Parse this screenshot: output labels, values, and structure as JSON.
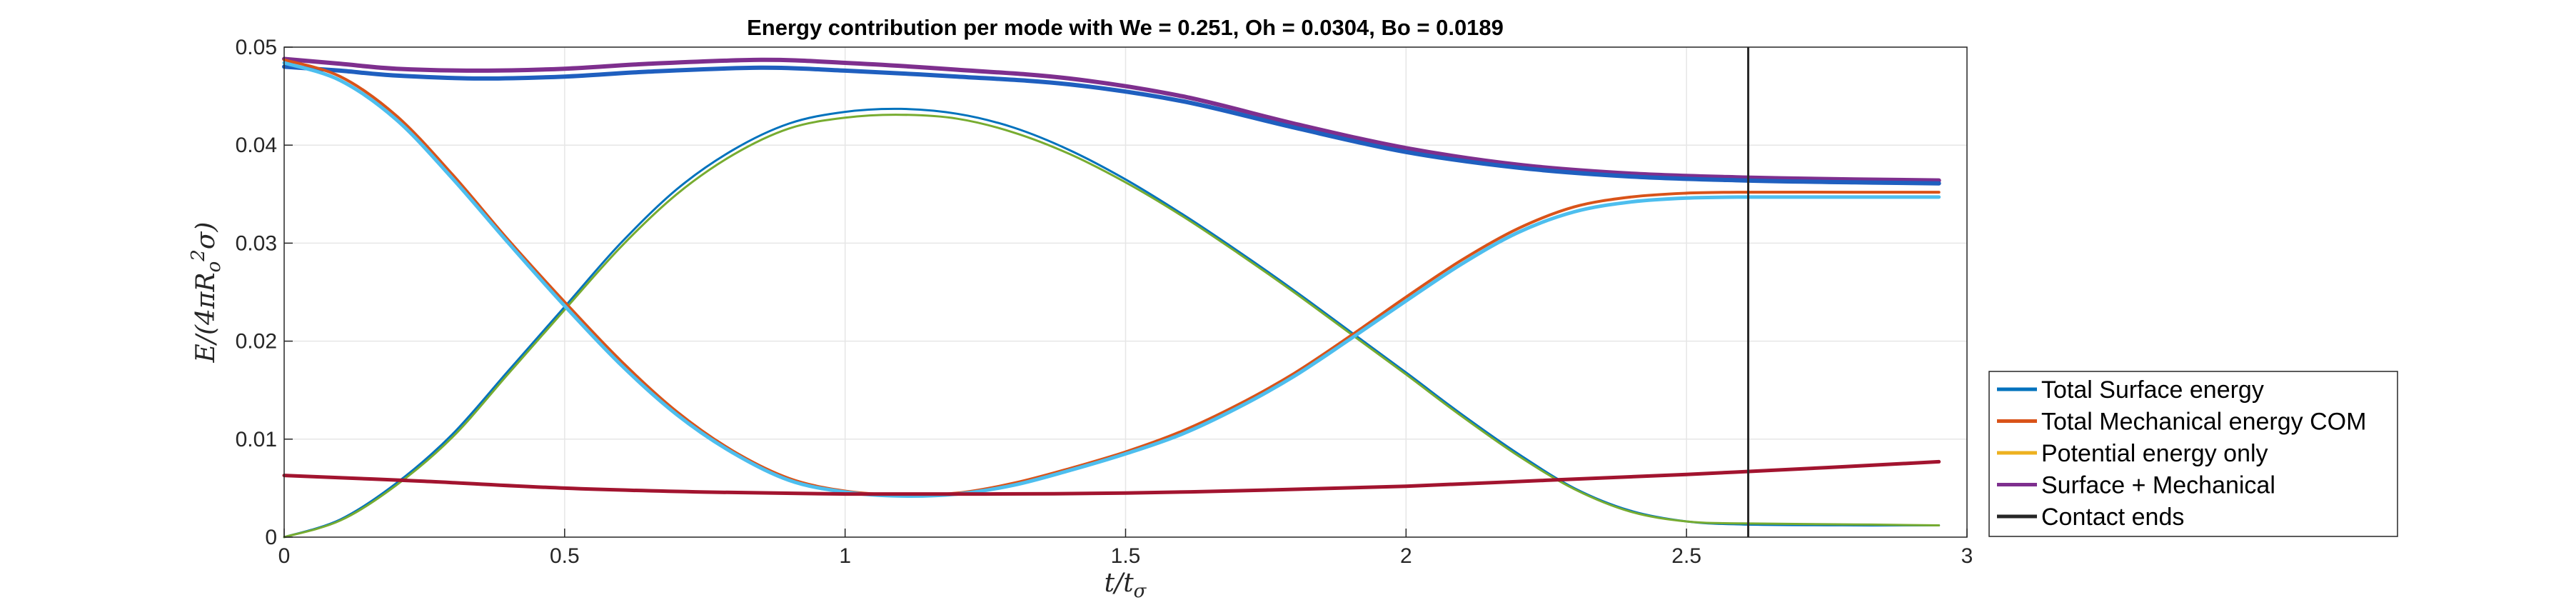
{
  "chart_data": {
    "type": "line",
    "title": "Energy contribution per mode with We = 0.251, Oh = 0.0304, Bo = 0.0189",
    "xlabel": "t/t_σ",
    "ylabel": "E/(4πR_o²σ)",
    "xlim": [
      0,
      3
    ],
    "ylim": [
      0,
      0.05
    ],
    "xticks": [
      "0",
      "0.5",
      "1",
      "1.5",
      "2",
      "2.5",
      "3"
    ],
    "yticks": [
      "0",
      "0.01",
      "0.02",
      "0.03",
      "0.04",
      "0.05"
    ],
    "grid": true,
    "legend_position": "lower-right outside",
    "legend": [
      {
        "label": "Total Surface energy",
        "color": "#0072BD"
      },
      {
        "label": "Total Mechanical energy COM",
        "color": "#D95319"
      },
      {
        "label": "Potential energy only",
        "color": "#EDB120"
      },
      {
        "label": "Surface + Mechanical",
        "color": "#7E2F8E"
      },
      {
        "label": "Contact ends",
        "color": "#262626"
      }
    ],
    "contact_end_x": 2.61,
    "series": [
      {
        "name": "Surface + Mechanical",
        "color": "#7E2F8E",
        "width": 6,
        "points": [
          [
            0,
            0.0488
          ],
          [
            0.1,
            0.0483
          ],
          [
            0.2,
            0.0478
          ],
          [
            0.35,
            0.0476
          ],
          [
            0.5,
            0.0478
          ],
          [
            0.65,
            0.0483
          ],
          [
            0.85,
            0.0487
          ],
          [
            1.0,
            0.0484
          ],
          [
            1.2,
            0.0477
          ],
          [
            1.4,
            0.0468
          ],
          [
            1.6,
            0.045
          ],
          [
            1.8,
            0.0422
          ],
          [
            2.0,
            0.0397
          ],
          [
            2.2,
            0.038
          ],
          [
            2.4,
            0.0371
          ],
          [
            2.6,
            0.0367
          ],
          [
            2.8,
            0.0365
          ],
          [
            2.95,
            0.0364
          ]
        ]
      },
      {
        "name": "",
        "color": "#1F5FBF",
        "width": 6,
        "points": [
          [
            0,
            0.048
          ],
          [
            0.1,
            0.0476
          ],
          [
            0.2,
            0.0471
          ],
          [
            0.35,
            0.0468
          ],
          [
            0.5,
            0.047
          ],
          [
            0.65,
            0.0475
          ],
          [
            0.85,
            0.0479
          ],
          [
            1.0,
            0.0476
          ],
          [
            1.2,
            0.047
          ],
          [
            1.4,
            0.0462
          ],
          [
            1.6,
            0.0445
          ],
          [
            1.8,
            0.0418
          ],
          [
            2.0,
            0.0393
          ],
          [
            2.2,
            0.0377
          ],
          [
            2.4,
            0.0368
          ],
          [
            2.6,
            0.0364
          ],
          [
            2.8,
            0.0362
          ],
          [
            2.95,
            0.0361
          ]
        ]
      },
      {
        "name": "",
        "color": "#0072BD",
        "width": 3,
        "points": [
          [
            0,
            0
          ],
          [
            0.1,
            0.0018
          ],
          [
            0.2,
            0.0055
          ],
          [
            0.3,
            0.0105
          ],
          [
            0.4,
            0.017
          ],
          [
            0.5,
            0.0235
          ],
          [
            0.6,
            0.03
          ],
          [
            0.7,
            0.0355
          ],
          [
            0.8,
            0.0395
          ],
          [
            0.9,
            0.0422
          ],
          [
            1.0,
            0.0434
          ],
          [
            1.1,
            0.0437
          ],
          [
            1.2,
            0.0432
          ],
          [
            1.3,
            0.0418
          ],
          [
            1.4,
            0.0395
          ],
          [
            1.5,
            0.0365
          ],
          [
            1.6,
            0.033
          ],
          [
            1.7,
            0.0292
          ],
          [
            1.8,
            0.0252
          ],
          [
            1.9,
            0.021
          ],
          [
            2.0,
            0.0168
          ],
          [
            2.1,
            0.0125
          ],
          [
            2.2,
            0.0085
          ],
          [
            2.3,
            0.005
          ],
          [
            2.4,
            0.0027
          ],
          [
            2.5,
            0.0016
          ],
          [
            2.6,
            0.0013
          ],
          [
            2.8,
            0.0012
          ],
          [
            2.95,
            0.0012
          ]
        ]
      },
      {
        "name": "",
        "color": "#77AC30",
        "width": 3,
        "points": [
          [
            0,
            0
          ],
          [
            0.1,
            0.0017
          ],
          [
            0.2,
            0.0053
          ],
          [
            0.3,
            0.0102
          ],
          [
            0.4,
            0.0167
          ],
          [
            0.5,
            0.0232
          ],
          [
            0.6,
            0.0296
          ],
          [
            0.7,
            0.035
          ],
          [
            0.8,
            0.039
          ],
          [
            0.9,
            0.0417
          ],
          [
            1.0,
            0.0428
          ],
          [
            1.1,
            0.0431
          ],
          [
            1.2,
            0.0427
          ],
          [
            1.3,
            0.0413
          ],
          [
            1.4,
            0.0391
          ],
          [
            1.5,
            0.0362
          ],
          [
            1.6,
            0.0328
          ],
          [
            1.7,
            0.029
          ],
          [
            1.8,
            0.025
          ],
          [
            1.9,
            0.0208
          ],
          [
            2.0,
            0.0166
          ],
          [
            2.1,
            0.0123
          ],
          [
            2.2,
            0.0083
          ],
          [
            2.3,
            0.0049
          ],
          [
            2.4,
            0.0026
          ],
          [
            2.5,
            0.0016
          ],
          [
            2.6,
            0.0014
          ],
          [
            2.8,
            0.0013
          ],
          [
            2.95,
            0.0012
          ]
        ]
      },
      {
        "name": "Total Mechanical energy COM",
        "color": "#D95319",
        "width": 4,
        "points": [
          [
            0,
            0.0487
          ],
          [
            0.1,
            0.047
          ],
          [
            0.2,
            0.043
          ],
          [
            0.3,
            0.037
          ],
          [
            0.4,
            0.0303
          ],
          [
            0.5,
            0.024
          ],
          [
            0.6,
            0.018
          ],
          [
            0.7,
            0.0128
          ],
          [
            0.8,
            0.0088
          ],
          [
            0.9,
            0.006
          ],
          [
            1.0,
            0.0047
          ],
          [
            1.1,
            0.0043
          ],
          [
            1.2,
            0.0045
          ],
          [
            1.3,
            0.0055
          ],
          [
            1.4,
            0.007
          ],
          [
            1.5,
            0.0087
          ],
          [
            1.6,
            0.0108
          ],
          [
            1.7,
            0.0135
          ],
          [
            1.8,
            0.0167
          ],
          [
            1.9,
            0.0205
          ],
          [
            2.0,
            0.0245
          ],
          [
            2.1,
            0.0283
          ],
          [
            2.2,
            0.0315
          ],
          [
            2.3,
            0.0337
          ],
          [
            2.4,
            0.0347
          ],
          [
            2.5,
            0.0351
          ],
          [
            2.6,
            0.0352
          ],
          [
            2.8,
            0.0352
          ],
          [
            2.95,
            0.0352
          ]
        ]
      },
      {
        "name": "",
        "color": "#4DBEEE",
        "width": 5,
        "points": [
          [
            0,
            0.0484
          ],
          [
            0.1,
            0.0466
          ],
          [
            0.2,
            0.0426
          ],
          [
            0.3,
            0.0366
          ],
          [
            0.4,
            0.03
          ],
          [
            0.5,
            0.0236
          ],
          [
            0.6,
            0.0176
          ],
          [
            0.7,
            0.0125
          ],
          [
            0.8,
            0.0086
          ],
          [
            0.9,
            0.0058
          ],
          [
            1.0,
            0.0046
          ],
          [
            1.1,
            0.0042
          ],
          [
            1.2,
            0.0044
          ],
          [
            1.3,
            0.0053
          ],
          [
            1.4,
            0.0068
          ],
          [
            1.5,
            0.0085
          ],
          [
            1.6,
            0.0105
          ],
          [
            1.7,
            0.0132
          ],
          [
            1.8,
            0.0164
          ],
          [
            1.9,
            0.0202
          ],
          [
            2.0,
            0.0241
          ],
          [
            2.1,
            0.0279
          ],
          [
            2.2,
            0.0311
          ],
          [
            2.3,
            0.0332
          ],
          [
            2.4,
            0.0342
          ],
          [
            2.5,
            0.0346
          ],
          [
            2.6,
            0.0347
          ],
          [
            2.8,
            0.0347
          ],
          [
            2.95,
            0.0347
          ]
        ]
      },
      {
        "name": "",
        "color": "#A2142F",
        "width": 5,
        "points": [
          [
            0,
            0.0063
          ],
          [
            0.25,
            0.0057
          ],
          [
            0.5,
            0.005
          ],
          [
            0.75,
            0.0046
          ],
          [
            1.0,
            0.0044
          ],
          [
            1.25,
            0.0044
          ],
          [
            1.5,
            0.0045
          ],
          [
            1.75,
            0.0048
          ],
          [
            2.0,
            0.0052
          ],
          [
            2.25,
            0.0058
          ],
          [
            2.5,
            0.0064
          ],
          [
            2.75,
            0.0071
          ],
          [
            2.95,
            0.0077
          ]
        ]
      }
    ]
  }
}
